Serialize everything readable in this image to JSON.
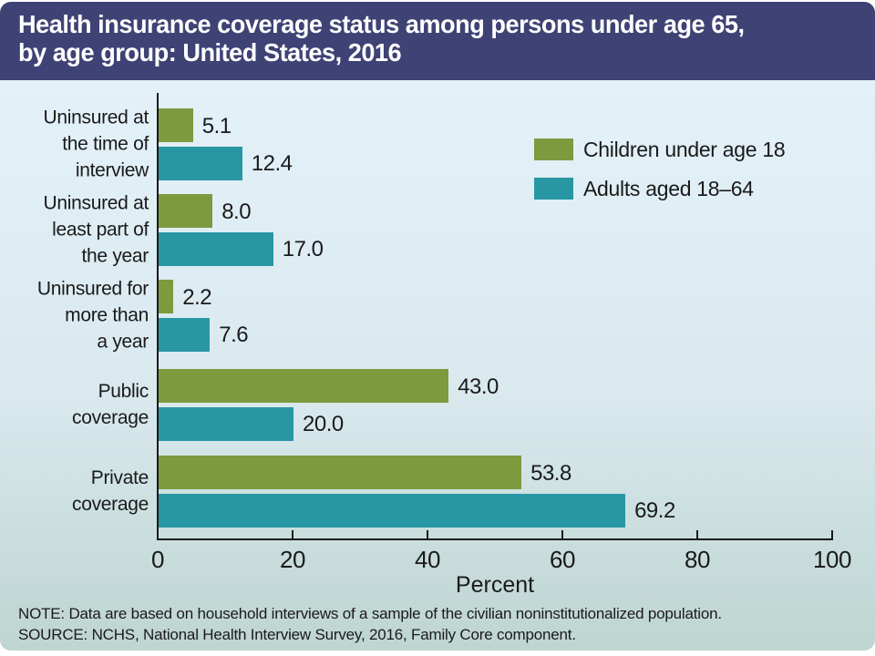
{
  "header": {
    "title": "Health insurance coverage status among persons under age 65,\nby age group: United States, 2016"
  },
  "legend": {
    "items": [
      {
        "label": "Children under age 18",
        "color": "#7e9a3e"
      },
      {
        "label": "Adults aged 18–64",
        "color": "#2996a4"
      }
    ]
  },
  "chart_data": {
    "type": "bar",
    "orientation": "horizontal",
    "title": "Health insurance coverage status among persons under age 65, by age group: United States, 2016",
    "categories": [
      "Uninsured at\nthe time of\ninterview",
      "Uninsured at\nleast part of\nthe year",
      "Uninsured for\nmore than\na year",
      "Public\ncoverage",
      "Private\ncoverage"
    ],
    "series": [
      {
        "name": "Children under age 18",
        "color": "#7e9a3e",
        "values": [
          5.1,
          8.0,
          2.2,
          43.0,
          53.8
        ]
      },
      {
        "name": "Adults aged 18–64",
        "color": "#2996a4",
        "values": [
          12.4,
          17.0,
          7.6,
          20.0,
          69.2
        ]
      }
    ],
    "xlabel": "Percent",
    "xlim": [
      0,
      100
    ],
    "xticks": [
      0,
      20,
      40,
      60,
      80,
      100
    ],
    "grid": false,
    "legend_position": "upper-right",
    "value_label_format": "one-decimal"
  },
  "footer": {
    "note": "NOTE: Data are based on household interviews of a sample of the civilian noninstitutionalized population.",
    "source": "SOURCE: NCHS, National Health Interview Survey, 2016, Family Core component."
  },
  "colors": {
    "header_bg": "#3e4274",
    "chart_bg_top": "#e4f1f9",
    "chart_bg_bottom": "#bed5d1",
    "axis": "#1a1a1a",
    "text": "#1a1a1a",
    "title_text": "#ffffff"
  }
}
